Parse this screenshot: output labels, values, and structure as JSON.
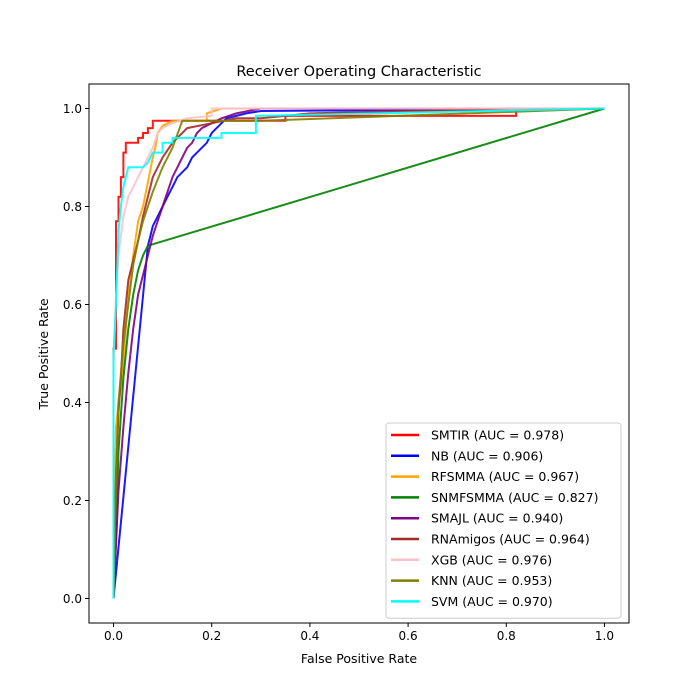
{
  "chart_data": {
    "type": "line",
    "title": "Receiver Operating Characteristic",
    "xlabel": "False Positive Rate",
    "ylabel": "True Positive Rate",
    "xlim": [
      -0.05,
      1.05
    ],
    "ylim": [
      -0.05,
      1.05
    ],
    "x_ticks": [
      "0.0",
      "0.2",
      "0.4",
      "0.6",
      "0.8",
      "1.0"
    ],
    "y_ticks": [
      "0.0",
      "0.2",
      "0.4",
      "0.6",
      "0.8",
      "1.0"
    ],
    "grid": false,
    "legend_position": "lower-right",
    "series": [
      {
        "name": "SMTIR (AUC = 0.978)",
        "color": "#ff0000",
        "x": [
          0.0,
          0.0,
          0.005,
          0.005,
          0.01,
          0.01,
          0.015,
          0.015,
          0.02,
          0.02,
          0.025,
          0.025,
          0.05,
          0.05,
          0.06,
          0.06,
          0.07,
          0.07,
          0.08,
          0.08,
          0.09,
          0.09,
          0.35,
          0.35,
          0.82,
          0.82,
          1.0
        ],
        "y": [
          0.0,
          0.51,
          0.51,
          0.77,
          0.77,
          0.82,
          0.82,
          0.86,
          0.86,
          0.91,
          0.91,
          0.93,
          0.93,
          0.94,
          0.94,
          0.95,
          0.95,
          0.96,
          0.96,
          0.975,
          0.975,
          0.975,
          0.975,
          0.985,
          0.985,
          1.0,
          1.0
        ]
      },
      {
        "name": "NB (AUC = 0.906)",
        "color": "#0000ff",
        "x": [
          0.0,
          0.07,
          0.075,
          0.08,
          0.09,
          0.1,
          0.11,
          0.12,
          0.13,
          0.14,
          0.15,
          0.16,
          0.17,
          0.18,
          0.19,
          0.2,
          0.21,
          0.22,
          0.23,
          0.25,
          0.27,
          0.3,
          1.0
        ],
        "y": [
          0.0,
          0.72,
          0.74,
          0.76,
          0.78,
          0.8,
          0.82,
          0.84,
          0.86,
          0.87,
          0.88,
          0.9,
          0.91,
          0.92,
          0.93,
          0.95,
          0.96,
          0.97,
          0.98,
          0.985,
          0.99,
          0.995,
          1.0
        ]
      },
      {
        "name": "RFSMMA (AUC = 0.967)",
        "color": "#ffa500",
        "x": [
          0.0,
          0.005,
          0.01,
          0.015,
          0.02,
          0.03,
          0.04,
          0.05,
          0.06,
          0.07,
          0.08,
          0.085,
          0.09,
          0.1,
          0.12,
          0.14,
          0.16,
          0.18,
          0.19,
          0.19,
          0.22,
          0.4,
          1.0
        ],
        "y": [
          0.0,
          0.35,
          0.4,
          0.43,
          0.48,
          0.62,
          0.7,
          0.77,
          0.8,
          0.85,
          0.9,
          0.92,
          0.95,
          0.965,
          0.975,
          0.975,
          0.975,
          0.975,
          0.975,
          0.99,
          1.0,
          1.0,
          1.0
        ]
      },
      {
        "name": "SNMFSMMA (AUC = 0.827)",
        "color": "#008000",
        "x": [
          0.0,
          0.005,
          0.01,
          0.02,
          0.03,
          0.04,
          0.05,
          0.06,
          0.07,
          1.0
        ],
        "y": [
          0.0,
          0.12,
          0.3,
          0.45,
          0.55,
          0.62,
          0.67,
          0.7,
          0.72,
          1.0
        ]
      },
      {
        "name": "SMAJL (AUC = 0.940)",
        "color": "#800080",
        "x": [
          0.0,
          0.01,
          0.02,
          0.03,
          0.04,
          0.05,
          0.06,
          0.07,
          0.08,
          0.09,
          0.1,
          0.11,
          0.12,
          0.13,
          0.14,
          0.15,
          0.16,
          0.17,
          0.18,
          0.2,
          0.22,
          0.25,
          0.3,
          0.4,
          1.0
        ],
        "y": [
          0.0,
          0.22,
          0.35,
          0.46,
          0.55,
          0.62,
          0.66,
          0.7,
          0.74,
          0.77,
          0.8,
          0.83,
          0.86,
          0.88,
          0.9,
          0.92,
          0.93,
          0.95,
          0.96,
          0.97,
          0.98,
          0.99,
          1.0,
          1.0,
          1.0
        ]
      },
      {
        "name": "RNAmigos (AUC = 0.964)",
        "color": "#a52a2a",
        "x": [
          0.0,
          0.005,
          0.01,
          0.015,
          0.02,
          0.03,
          0.04,
          0.05,
          0.06,
          0.07,
          0.08,
          0.1,
          0.12,
          0.15,
          0.2,
          0.25,
          0.3,
          0.35,
          0.4,
          0.6,
          0.8,
          1.0
        ],
        "y": [
          0.0,
          0.25,
          0.38,
          0.45,
          0.55,
          0.65,
          0.69,
          0.73,
          0.78,
          0.82,
          0.86,
          0.9,
          0.93,
          0.96,
          0.97,
          0.98,
          0.98,
          0.985,
          0.99,
          0.995,
          0.998,
          1.0
        ]
      },
      {
        "name": "XGB (AUC = 0.976)",
        "color": "#ffc0cb",
        "x": [
          0.0,
          0.0,
          0.005,
          0.01,
          0.015,
          0.02,
          0.03,
          0.04,
          0.05,
          0.06,
          0.07,
          0.08,
          0.09,
          0.1,
          0.12,
          0.15,
          0.2,
          0.2,
          0.25,
          0.4,
          1.0
        ],
        "y": [
          0.0,
          0.48,
          0.62,
          0.7,
          0.74,
          0.78,
          0.82,
          0.84,
          0.86,
          0.88,
          0.9,
          0.92,
          0.95,
          0.96,
          0.97,
          0.98,
          0.985,
          1.0,
          1.0,
          1.0,
          1.0
        ]
      },
      {
        "name": "KNN (AUC = 0.953)",
        "color": "#808000",
        "x": [
          0.0,
          0.005,
          0.01,
          0.02,
          0.03,
          0.04,
          0.05,
          0.06,
          0.07,
          0.08,
          0.1,
          0.12,
          0.14,
          0.2,
          0.3,
          1.0
        ],
        "y": [
          0.0,
          0.25,
          0.4,
          0.52,
          0.6,
          0.68,
          0.73,
          0.77,
          0.8,
          0.83,
          0.88,
          0.92,
          0.975,
          0.975,
          0.975,
          1.0
        ]
      },
      {
        "name": "SVM (AUC = 0.970)",
        "color": "#00ffff",
        "x": [
          0.0,
          0.0,
          0.005,
          0.01,
          0.015,
          0.02,
          0.03,
          0.06,
          0.07,
          0.08,
          0.1,
          0.1,
          0.12,
          0.12,
          0.22,
          0.22,
          0.29,
          0.29,
          1.0
        ],
        "y": [
          0.0,
          0.5,
          0.6,
          0.75,
          0.8,
          0.84,
          0.88,
          0.88,
          0.89,
          0.91,
          0.91,
          0.93,
          0.93,
          0.94,
          0.94,
          0.95,
          0.95,
          0.985,
          1.0
        ]
      }
    ]
  }
}
